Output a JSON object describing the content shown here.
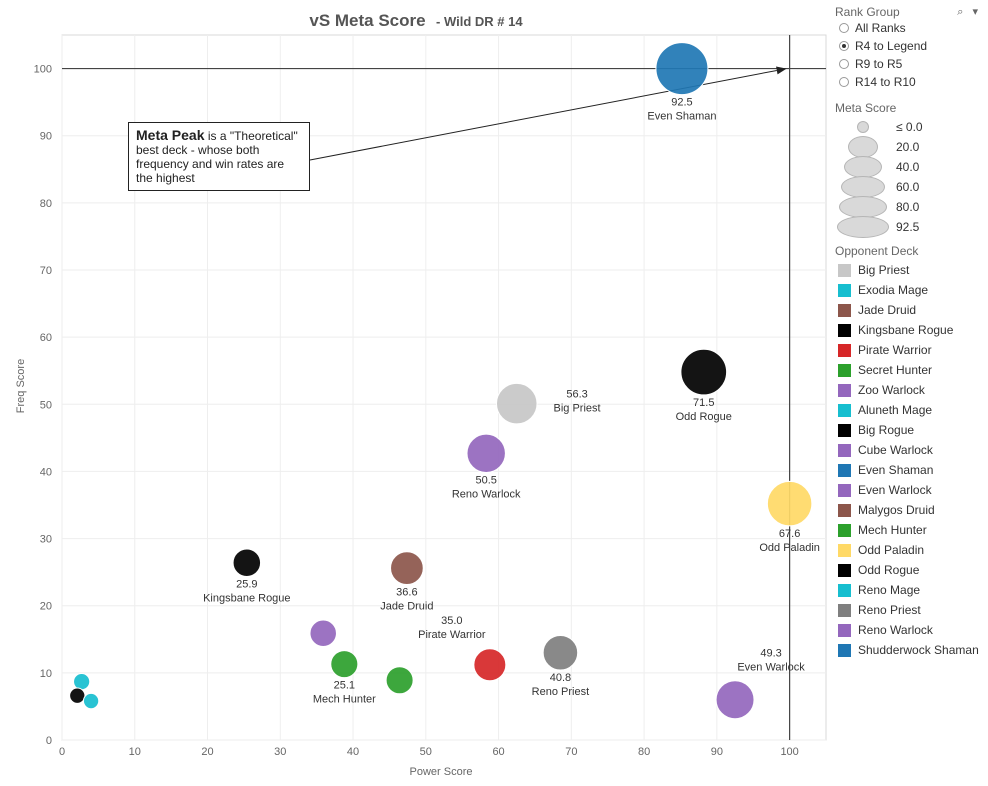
{
  "chart_data": {
    "type": "scatter",
    "title": "vS Meta Score",
    "subtitle": "- Wild DR # 14",
    "xlabel": "Power Score",
    "ylabel": "Freq Score",
    "xlim": [
      0,
      105
    ],
    "ylim": [
      0,
      105
    ],
    "x_ticks": [
      "0",
      "10",
      "20",
      "30",
      "40",
      "50",
      "60",
      "70",
      "80",
      "90",
      "100"
    ],
    "y_ticks": [
      "0",
      "10",
      "20",
      "30",
      "40",
      "50",
      "60",
      "70",
      "80",
      "90",
      "100"
    ],
    "grid": true,
    "reference_lines": {
      "x": 100,
      "y": 100
    },
    "points": [
      {
        "deck": "Even Shaman",
        "x": 85.2,
        "y": 100.0,
        "meta": 92.5,
        "label": "92.5",
        "name_label": "Even Shaman"
      },
      {
        "deck": "Odd Rogue",
        "x": 88.2,
        "y": 54.8,
        "meta": 71.5,
        "label": "71.5",
        "name_label": "Odd Rogue"
      },
      {
        "deck": "Odd Paladin",
        "x": 100.0,
        "y": 35.2,
        "meta": 67.6,
        "label": "67.6",
        "name_label": "Odd Paladin"
      },
      {
        "deck": "Big Priest",
        "x": 62.5,
        "y": 50.1,
        "meta": 56.3,
        "label": "56.3",
        "name_label": "Big Priest"
      },
      {
        "deck": "Reno Warlock",
        "x": 58.3,
        "y": 42.7,
        "meta": 50.5,
        "label": "50.5",
        "name_label": "Reno Warlock"
      },
      {
        "deck": "Even Warlock",
        "x": 92.5,
        "y": 6.0,
        "meta": 49.3,
        "label": "49.3",
        "name_label": "Even Warlock"
      },
      {
        "deck": "Reno Priest",
        "x": 68.5,
        "y": 13.0,
        "meta": 40.8,
        "label": "40.8",
        "name_label": "Reno Priest"
      },
      {
        "deck": "Jade Druid",
        "x": 47.4,
        "y": 25.6,
        "meta": 36.6,
        "label": "36.6",
        "name_label": "Jade Druid"
      },
      {
        "deck": "Pirate Warrior",
        "x": 58.8,
        "y": 11.2,
        "meta": 35.0,
        "label": "35.0",
        "name_label": "Pirate Warrior"
      },
      {
        "deck": "Kingsbane Rogue",
        "x": 25.4,
        "y": 26.4,
        "meta": 25.9,
        "label": "25.9",
        "name_label": "Kingsbane Rogue"
      },
      {
        "deck": "Mech Hunter",
        "x": 38.8,
        "y": 11.3,
        "meta": 25.1,
        "label": "25.1",
        "name_label": "Mech Hunter"
      },
      {
        "deck": "Mech Hunter",
        "x": 46.4,
        "y": 8.9,
        "meta": 25.0,
        "label": "",
        "name_label": ""
      },
      {
        "deck": "Cube Warlock",
        "x": 35.9,
        "y": 15.9,
        "meta": 24.0,
        "label": "",
        "name_label": ""
      },
      {
        "deck": "Big Rogue",
        "x": 2.1,
        "y": 6.6,
        "meta": 8.0,
        "label": "",
        "name_label": ""
      },
      {
        "deck": "Exodia Mage",
        "x": 2.7,
        "y": 8.7,
        "meta": 9.0,
        "label": "",
        "name_label": ""
      },
      {
        "deck": "Aluneth Mage",
        "x": 4.0,
        "y": 5.8,
        "meta": 8.0,
        "label": "",
        "name_label": ""
      }
    ]
  },
  "annotation": {
    "bold": "Meta Peak",
    "text": " is a \"Theoretical\" best deck - whose both frequency and win rates are the highest"
  },
  "legend": {
    "rank_group_title": "Rank Group",
    "rank_options": [
      "All Ranks",
      "R4 to Legend",
      "R9 to R5",
      "R14 to R10"
    ],
    "rank_selected": "R4 to Legend",
    "meta_score_title": "Meta Score",
    "meta_sizes": [
      "≤ 0.0",
      "20.0",
      "40.0",
      "60.0",
      "80.0",
      "92.5"
    ],
    "opponent_title": "Opponent Deck",
    "decks": [
      {
        "name": "Big Priest",
        "color": "#c7c7c7"
      },
      {
        "name": "Exodia Mage",
        "color": "#17becf"
      },
      {
        "name": "Jade Druid",
        "color": "#8c564b"
      },
      {
        "name": "Kingsbane Rogue",
        "color": "#000000"
      },
      {
        "name": "Pirate Warrior",
        "color": "#d62728"
      },
      {
        "name": "Secret Hunter",
        "color": "#2ca02c"
      },
      {
        "name": "Zoo Warlock",
        "color": "#9467bd"
      },
      {
        "name": "Aluneth Mage",
        "color": "#17becf"
      },
      {
        "name": "Big Rogue",
        "color": "#000000"
      },
      {
        "name": "Cube Warlock",
        "color": "#9467bd"
      },
      {
        "name": "Even Shaman",
        "color": "#1f77b4"
      },
      {
        "name": "Even Warlock",
        "color": "#9467bd"
      },
      {
        "name": "Malygos Druid",
        "color": "#8c564b"
      },
      {
        "name": "Mech Hunter",
        "color": "#2ca02c"
      },
      {
        "name": "Odd Paladin",
        "color": "#ffd966"
      },
      {
        "name": "Odd Rogue",
        "color": "#000000"
      },
      {
        "name": "Reno Mage",
        "color": "#17becf"
      },
      {
        "name": "Reno Priest",
        "color": "#7f7f7f"
      },
      {
        "name": "Reno Warlock",
        "color": "#9467bd"
      },
      {
        "name": "Shudderwock Shaman",
        "color": "#1f77b4"
      }
    ]
  }
}
